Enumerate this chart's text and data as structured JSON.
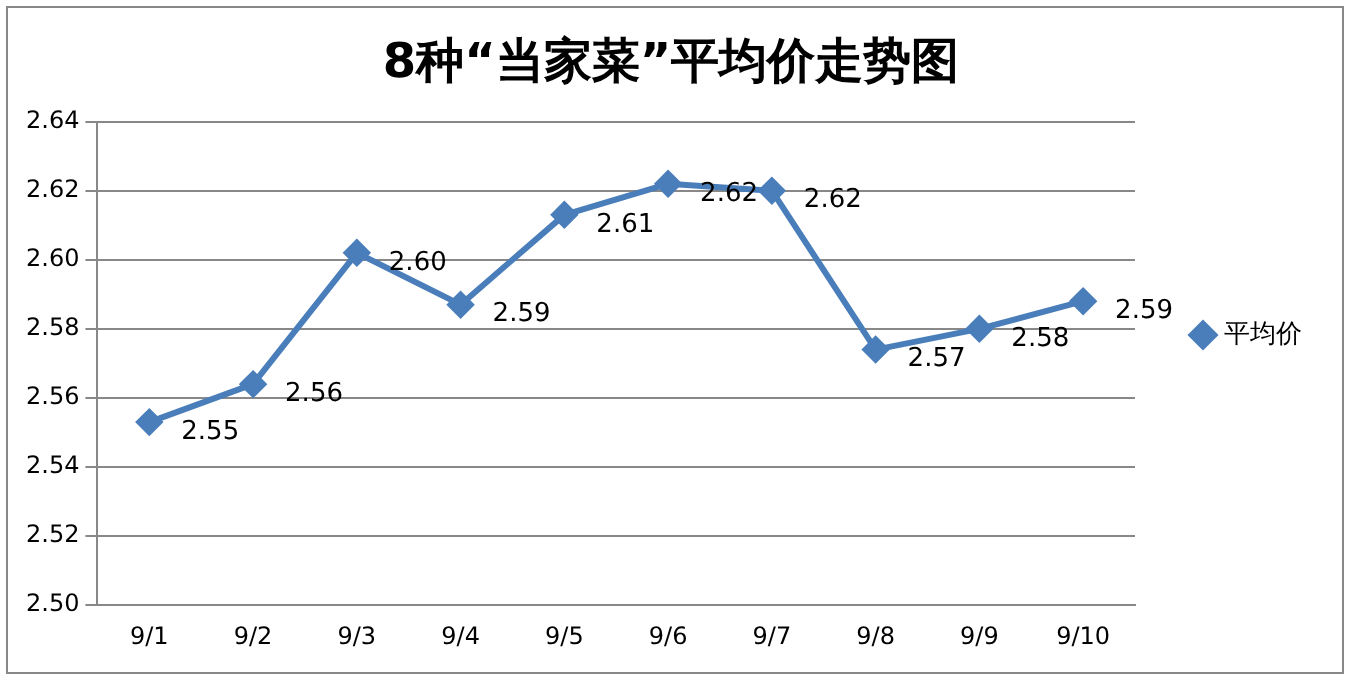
{
  "chart_data": {
    "type": "line",
    "title": "8种“当家菜”平均价走势图",
    "categories": [
      "9/1",
      "9/2",
      "9/3",
      "9/4",
      "9/5",
      "9/6",
      "9/7",
      "9/8",
      "9/9",
      "9/10"
    ],
    "series": [
      {
        "name": "平均价",
        "color": "#4a7ebb",
        "values": [
          2.553,
          2.564,
          2.602,
          2.587,
          2.613,
          2.622,
          2.62,
          2.574,
          2.58,
          2.588
        ],
        "value_labels": [
          "2.55",
          "2.56",
          "2.60",
          "2.59",
          "2.61",
          "2.62",
          "2.62",
          "2.57",
          "2.58",
          "2.59"
        ]
      }
    ],
    "ylim": [
      2.5,
      2.64
    ],
    "yticks": [
      "2.50",
      "2.52",
      "2.54",
      "2.56",
      "2.58",
      "2.60",
      "2.62",
      "2.64"
    ],
    "grid": "y",
    "legend": "right",
    "marker": "diamond",
    "line_style": "solid"
  }
}
